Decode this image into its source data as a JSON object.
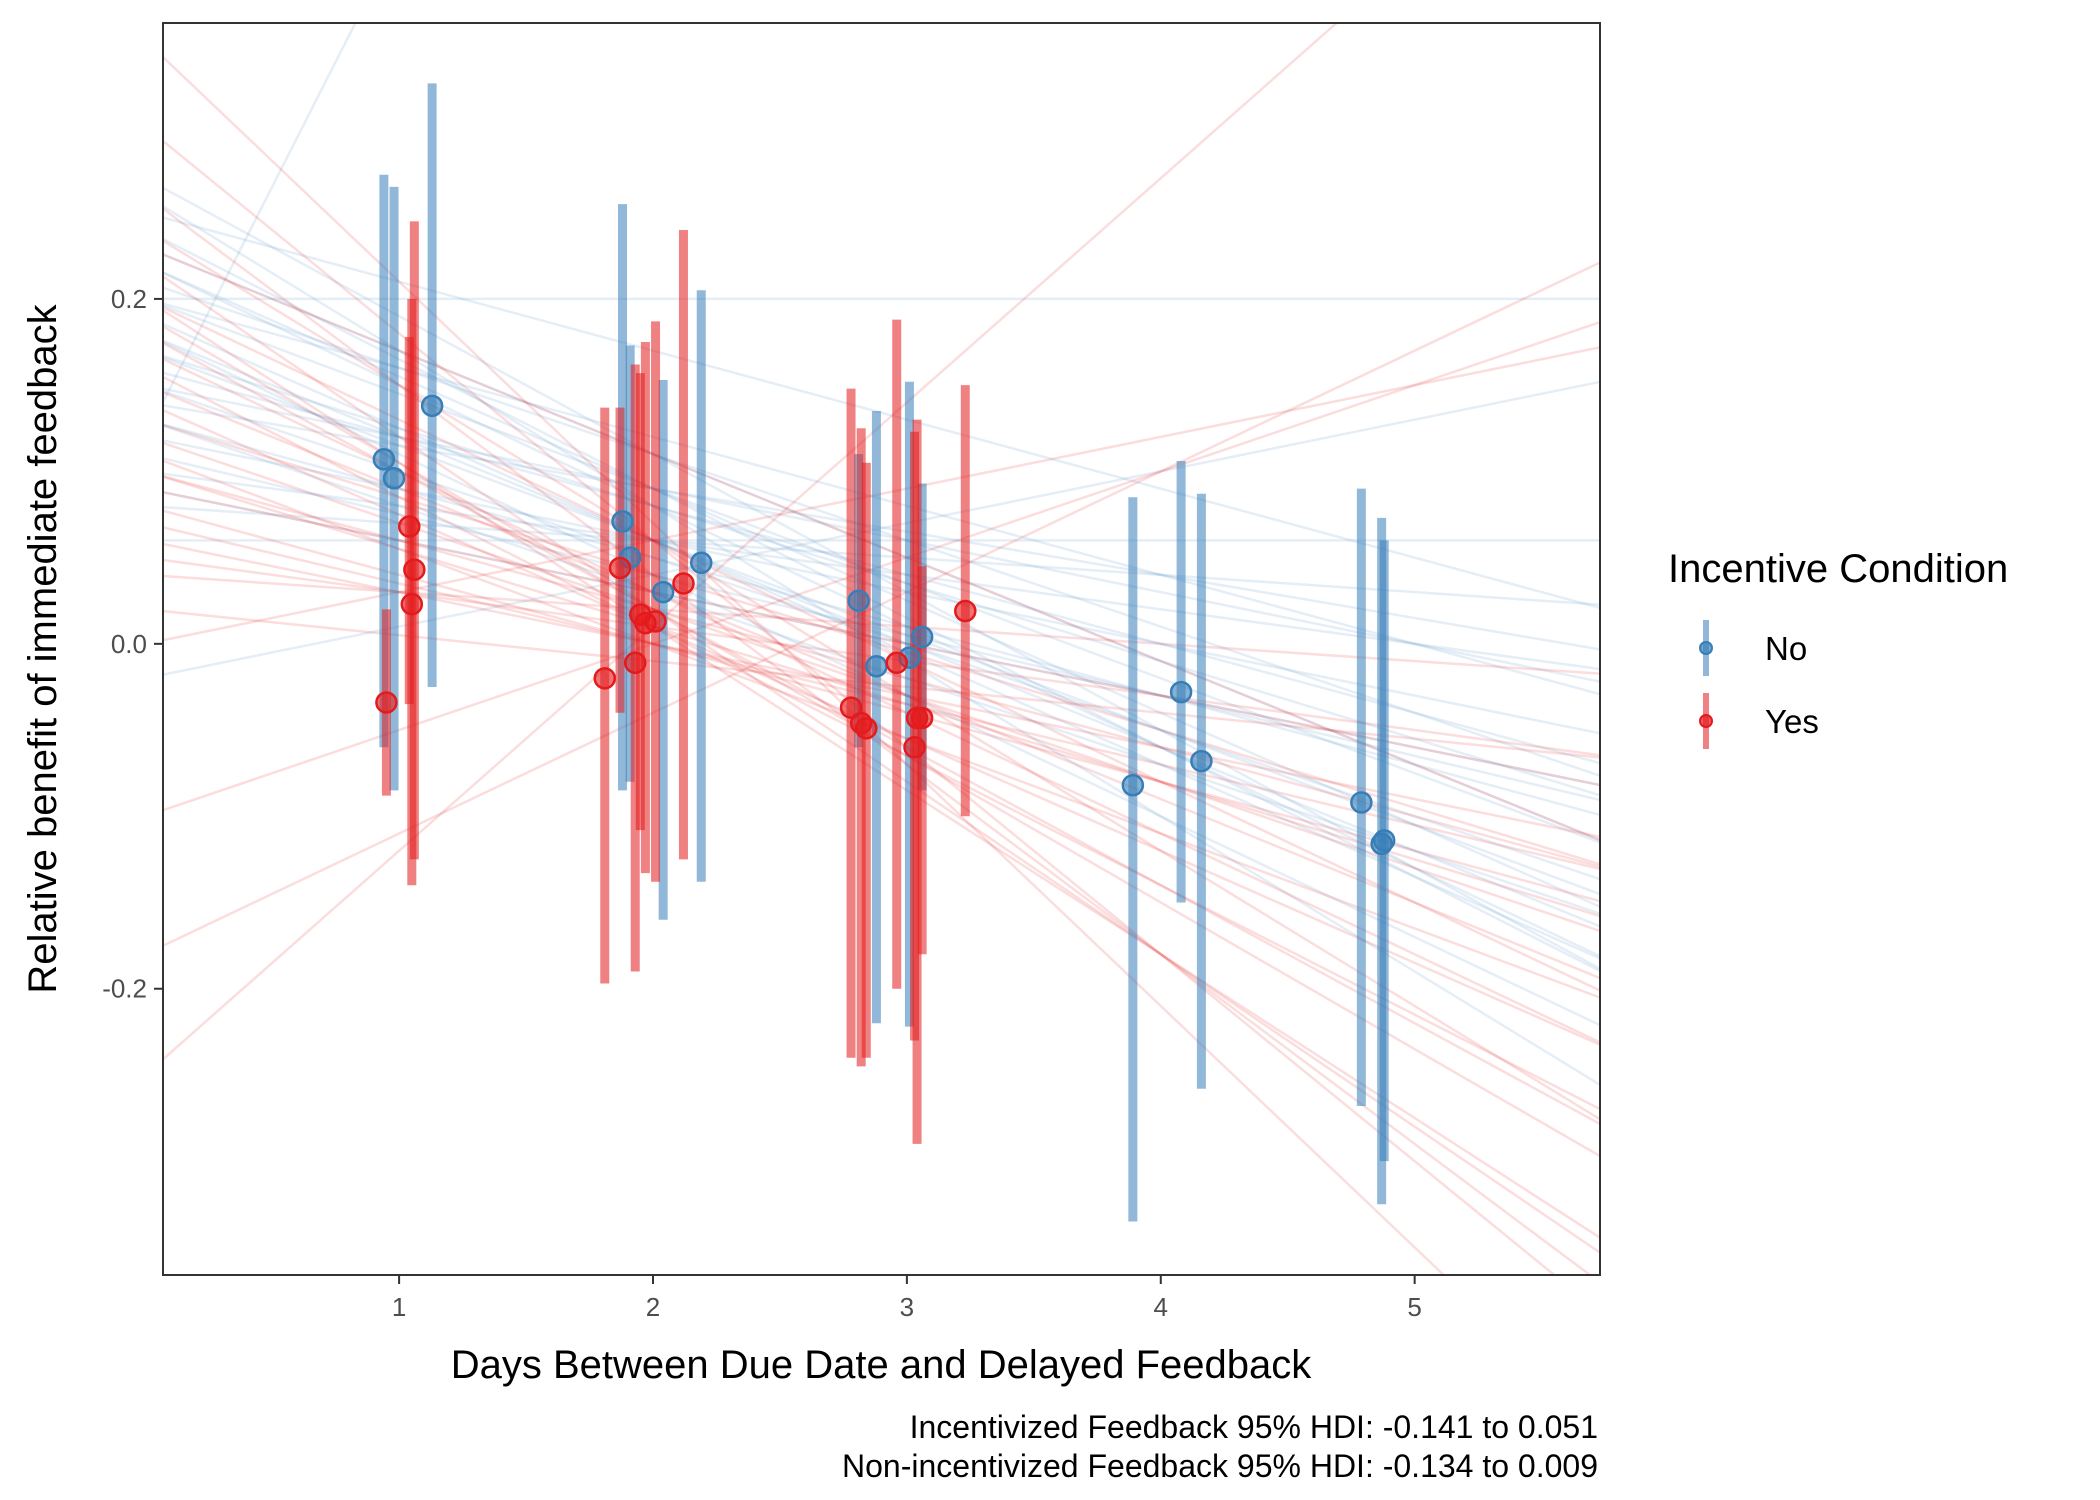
{
  "chart_data": {
    "type": "scatter",
    "title": "",
    "xlabel": "Days Between Due Date and Delayed Feedback",
    "ylabel": "Relative benefit of immediate feedback",
    "xlim": [
      0.07,
      5.73
    ],
    "ylim": [
      -0.366,
      0.36
    ],
    "x_ticks": [
      1,
      2,
      3,
      4,
      5
    ],
    "x_tick_labels": [
      "1",
      "2",
      "3",
      "4",
      "5"
    ],
    "y_ticks": [
      -0.2,
      0.0,
      0.2
    ],
    "y_tick_labels": [
      "-0.2",
      "0.0",
      "0.2"
    ],
    "grid": false,
    "legend": {
      "title": "Incentive Condition",
      "placement": "right",
      "entries": [
        {
          "label": "No",
          "color": "#377EB8"
        },
        {
          "label": "Yes",
          "color": "#E41A1C"
        }
      ]
    },
    "caption": [
      "Incentivized Feedback 95% HDI: -0.141 to 0.051",
      "Non-incentivized Feedback 95% HDI: -0.134 to 0.009"
    ],
    "series": [
      {
        "name": "No",
        "color": "#377EB8",
        "points": [
          {
            "x": 0.94,
            "y": 0.107,
            "lo": -0.06,
            "hi": 0.272
          },
          {
            "x": 0.98,
            "y": 0.096,
            "lo": -0.085,
            "hi": 0.265
          },
          {
            "x": 1.13,
            "y": 0.138,
            "lo": -0.025,
            "hi": 0.325
          },
          {
            "x": 1.88,
            "y": 0.071,
            "lo": -0.085,
            "hi": 0.255
          },
          {
            "x": 1.91,
            "y": 0.05,
            "lo": -0.08,
            "hi": 0.173
          },
          {
            "x": 2.04,
            "y": 0.03,
            "lo": -0.16,
            "hi": 0.153
          },
          {
            "x": 2.19,
            "y": 0.047,
            "lo": -0.138,
            "hi": 0.205
          },
          {
            "x": 2.81,
            "y": 0.025,
            "lo": -0.06,
            "hi": 0.11
          },
          {
            "x": 2.88,
            "y": -0.013,
            "lo": -0.22,
            "hi": 0.135
          },
          {
            "x": 3.01,
            "y": -0.008,
            "lo": -0.222,
            "hi": 0.152
          },
          {
            "x": 3.06,
            "y": 0.004,
            "lo": -0.085,
            "hi": 0.093
          },
          {
            "x": 3.89,
            "y": -0.082,
            "lo": -0.335,
            "hi": 0.085
          },
          {
            "x": 4.08,
            "y": -0.028,
            "lo": -0.15,
            "hi": 0.106
          },
          {
            "x": 4.16,
            "y": -0.068,
            "lo": -0.258,
            "hi": 0.087
          },
          {
            "x": 4.79,
            "y": -0.092,
            "lo": -0.268,
            "hi": 0.09
          },
          {
            "x": 4.87,
            "y": -0.116,
            "lo": -0.325,
            "hi": 0.073
          },
          {
            "x": 4.88,
            "y": -0.114,
            "lo": -0.3,
            "hi": 0.06
          }
        ]
      },
      {
        "name": "Yes",
        "color": "#E41A1C",
        "points": [
          {
            "x": 0.95,
            "y": -0.034,
            "lo": -0.088,
            "hi": 0.02
          },
          {
            "x": 1.04,
            "y": 0.068,
            "lo": -0.035,
            "hi": 0.178
          },
          {
            "x": 1.05,
            "y": 0.023,
            "lo": -0.14,
            "hi": 0.2
          },
          {
            "x": 1.06,
            "y": 0.043,
            "lo": -0.125,
            "hi": 0.245
          },
          {
            "x": 1.81,
            "y": -0.02,
            "lo": -0.197,
            "hi": 0.137
          },
          {
            "x": 1.87,
            "y": 0.044,
            "lo": -0.04,
            "hi": 0.137
          },
          {
            "x": 1.93,
            "y": -0.011,
            "lo": -0.19,
            "hi": 0.162
          },
          {
            "x": 1.95,
            "y": 0.017,
            "lo": -0.108,
            "hi": 0.157
          },
          {
            "x": 1.97,
            "y": 0.012,
            "lo": -0.133,
            "hi": 0.175
          },
          {
            "x": 2.01,
            "y": 0.013,
            "lo": -0.138,
            "hi": 0.187
          },
          {
            "x": 2.12,
            "y": 0.035,
            "lo": -0.125,
            "hi": 0.24
          },
          {
            "x": 2.78,
            "y": -0.037,
            "lo": -0.24,
            "hi": 0.148
          },
          {
            "x": 2.82,
            "y": -0.046,
            "lo": -0.245,
            "hi": 0.125
          },
          {
            "x": 2.84,
            "y": -0.049,
            "lo": -0.24,
            "hi": 0.105
          },
          {
            "x": 2.96,
            "y": -0.011,
            "lo": -0.2,
            "hi": 0.188
          },
          {
            "x": 3.03,
            "y": -0.06,
            "lo": -0.23,
            "hi": 0.123
          },
          {
            "x": 3.04,
            "y": -0.043,
            "lo": -0.29,
            "hi": 0.13
          },
          {
            "x": 3.06,
            "y": -0.043,
            "lo": -0.18,
            "hi": 0.045
          },
          {
            "x": 3.23,
            "y": 0.019,
            "lo": -0.1,
            "hi": 0.15
          }
        ]
      }
    ],
    "posterior_lines": {
      "No": [
        [
          0.12,
          0.29
        ],
        [
          0.2,
          0.0
        ],
        [
          -0.02,
          0.03
        ],
        [
          0.25,
          -0.04
        ],
        [
          0.15,
          -0.03
        ],
        [
          0.18,
          -0.06
        ],
        [
          0.22,
          -0.07
        ],
        [
          0.1,
          -0.02
        ],
        [
          0.13,
          -0.05
        ],
        [
          0.27,
          -0.08
        ],
        [
          0.17,
          -0.045
        ],
        [
          0.2,
          -0.055
        ],
        [
          0.11,
          -0.035
        ],
        [
          0.24,
          -0.075
        ],
        [
          0.16,
          -0.04
        ],
        [
          0.19,
          -0.065
        ],
        [
          0.23,
          -0.06
        ],
        [
          0.14,
          -0.025
        ],
        [
          0.21,
          -0.05
        ],
        [
          0.08,
          -0.01
        ],
        [
          0.06,
          0.0
        ],
        [
          0.18,
          -0.07
        ],
        [
          0.26,
          -0.09
        ],
        [
          0.12,
          -0.03
        ],
        [
          0.15,
          -0.05
        ],
        [
          0.2,
          -0.04
        ],
        [
          0.09,
          -0.03
        ],
        [
          0.22,
          -0.065
        ],
        [
          0.13,
          -0.04
        ],
        [
          0.17,
          -0.055
        ]
      ],
      "Yes": [
        [
          0.2,
          -0.07
        ],
        [
          0.1,
          -0.04
        ],
        [
          0.05,
          -0.02
        ],
        [
          0.24,
          -0.09
        ],
        [
          0.15,
          -0.06
        ],
        [
          0.12,
          -0.05
        ],
        [
          0.08,
          -0.04
        ],
        [
          0.3,
          -0.12
        ],
        [
          0.0,
          0.03
        ],
        [
          -0.18,
          0.07
        ],
        [
          0.18,
          -0.08
        ],
        [
          0.14,
          -0.065
        ],
        [
          0.22,
          -0.1
        ],
        [
          0.09,
          -0.03
        ],
        [
          0.35,
          -0.14
        ],
        [
          0.06,
          -0.03
        ],
        [
          0.16,
          -0.075
        ],
        [
          0.11,
          -0.055
        ],
        [
          0.2,
          -0.095
        ],
        [
          -0.1,
          0.05
        ],
        [
          0.04,
          -0.01
        ],
        [
          0.26,
          -0.11
        ],
        [
          0.13,
          -0.045
        ],
        [
          0.19,
          -0.085
        ],
        [
          0.07,
          -0.035
        ],
        [
          -0.25,
          0.13
        ],
        [
          0.17,
          -0.07
        ],
        [
          0.1,
          -0.045
        ],
        [
          0.23,
          -0.06
        ],
        [
          0.02,
          -0.015
        ]
      ]
    }
  }
}
